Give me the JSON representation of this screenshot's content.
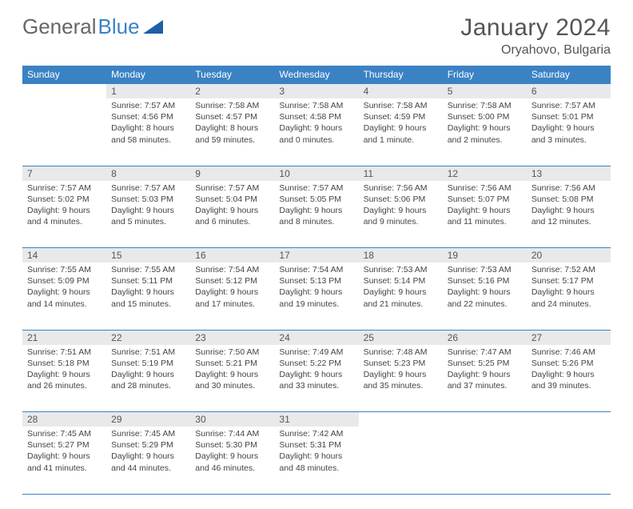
{
  "brand": {
    "general": "General",
    "blue": "Blue"
  },
  "title": "January 2024",
  "location": "Oryahovo, Bulgaria",
  "colors": {
    "header_bg": "#3b82c4",
    "header_text": "#ffffff",
    "daynum_bg": "#e8e9ea",
    "border": "#3b82c4",
    "text": "#444444",
    "page_bg": "#ffffff"
  },
  "weekdays": [
    "Sunday",
    "Monday",
    "Tuesday",
    "Wednesday",
    "Thursday",
    "Friday",
    "Saturday"
  ],
  "weeks": [
    {
      "nums": [
        "",
        "1",
        "2",
        "3",
        "4",
        "5",
        "6"
      ],
      "cells": [
        {
          "sunrise": "",
          "sunset": "",
          "daylight1": "",
          "daylight2": ""
        },
        {
          "sunrise": "Sunrise: 7:57 AM",
          "sunset": "Sunset: 4:56 PM",
          "daylight1": "Daylight: 8 hours",
          "daylight2": "and 58 minutes."
        },
        {
          "sunrise": "Sunrise: 7:58 AM",
          "sunset": "Sunset: 4:57 PM",
          "daylight1": "Daylight: 8 hours",
          "daylight2": "and 59 minutes."
        },
        {
          "sunrise": "Sunrise: 7:58 AM",
          "sunset": "Sunset: 4:58 PM",
          "daylight1": "Daylight: 9 hours",
          "daylight2": "and 0 minutes."
        },
        {
          "sunrise": "Sunrise: 7:58 AM",
          "sunset": "Sunset: 4:59 PM",
          "daylight1": "Daylight: 9 hours",
          "daylight2": "and 1 minute."
        },
        {
          "sunrise": "Sunrise: 7:58 AM",
          "sunset": "Sunset: 5:00 PM",
          "daylight1": "Daylight: 9 hours",
          "daylight2": "and 2 minutes."
        },
        {
          "sunrise": "Sunrise: 7:57 AM",
          "sunset": "Sunset: 5:01 PM",
          "daylight1": "Daylight: 9 hours",
          "daylight2": "and 3 minutes."
        }
      ]
    },
    {
      "nums": [
        "7",
        "8",
        "9",
        "10",
        "11",
        "12",
        "13"
      ],
      "cells": [
        {
          "sunrise": "Sunrise: 7:57 AM",
          "sunset": "Sunset: 5:02 PM",
          "daylight1": "Daylight: 9 hours",
          "daylight2": "and 4 minutes."
        },
        {
          "sunrise": "Sunrise: 7:57 AM",
          "sunset": "Sunset: 5:03 PM",
          "daylight1": "Daylight: 9 hours",
          "daylight2": "and 5 minutes."
        },
        {
          "sunrise": "Sunrise: 7:57 AM",
          "sunset": "Sunset: 5:04 PM",
          "daylight1": "Daylight: 9 hours",
          "daylight2": "and 6 minutes."
        },
        {
          "sunrise": "Sunrise: 7:57 AM",
          "sunset": "Sunset: 5:05 PM",
          "daylight1": "Daylight: 9 hours",
          "daylight2": "and 8 minutes."
        },
        {
          "sunrise": "Sunrise: 7:56 AM",
          "sunset": "Sunset: 5:06 PM",
          "daylight1": "Daylight: 9 hours",
          "daylight2": "and 9 minutes."
        },
        {
          "sunrise": "Sunrise: 7:56 AM",
          "sunset": "Sunset: 5:07 PM",
          "daylight1": "Daylight: 9 hours",
          "daylight2": "and 11 minutes."
        },
        {
          "sunrise": "Sunrise: 7:56 AM",
          "sunset": "Sunset: 5:08 PM",
          "daylight1": "Daylight: 9 hours",
          "daylight2": "and 12 minutes."
        }
      ]
    },
    {
      "nums": [
        "14",
        "15",
        "16",
        "17",
        "18",
        "19",
        "20"
      ],
      "cells": [
        {
          "sunrise": "Sunrise: 7:55 AM",
          "sunset": "Sunset: 5:09 PM",
          "daylight1": "Daylight: 9 hours",
          "daylight2": "and 14 minutes."
        },
        {
          "sunrise": "Sunrise: 7:55 AM",
          "sunset": "Sunset: 5:11 PM",
          "daylight1": "Daylight: 9 hours",
          "daylight2": "and 15 minutes."
        },
        {
          "sunrise": "Sunrise: 7:54 AM",
          "sunset": "Sunset: 5:12 PM",
          "daylight1": "Daylight: 9 hours",
          "daylight2": "and 17 minutes."
        },
        {
          "sunrise": "Sunrise: 7:54 AM",
          "sunset": "Sunset: 5:13 PM",
          "daylight1": "Daylight: 9 hours",
          "daylight2": "and 19 minutes."
        },
        {
          "sunrise": "Sunrise: 7:53 AM",
          "sunset": "Sunset: 5:14 PM",
          "daylight1": "Daylight: 9 hours",
          "daylight2": "and 21 minutes."
        },
        {
          "sunrise": "Sunrise: 7:53 AM",
          "sunset": "Sunset: 5:16 PM",
          "daylight1": "Daylight: 9 hours",
          "daylight2": "and 22 minutes."
        },
        {
          "sunrise": "Sunrise: 7:52 AM",
          "sunset": "Sunset: 5:17 PM",
          "daylight1": "Daylight: 9 hours",
          "daylight2": "and 24 minutes."
        }
      ]
    },
    {
      "nums": [
        "21",
        "22",
        "23",
        "24",
        "25",
        "26",
        "27"
      ],
      "cells": [
        {
          "sunrise": "Sunrise: 7:51 AM",
          "sunset": "Sunset: 5:18 PM",
          "daylight1": "Daylight: 9 hours",
          "daylight2": "and 26 minutes."
        },
        {
          "sunrise": "Sunrise: 7:51 AM",
          "sunset": "Sunset: 5:19 PM",
          "daylight1": "Daylight: 9 hours",
          "daylight2": "and 28 minutes."
        },
        {
          "sunrise": "Sunrise: 7:50 AM",
          "sunset": "Sunset: 5:21 PM",
          "daylight1": "Daylight: 9 hours",
          "daylight2": "and 30 minutes."
        },
        {
          "sunrise": "Sunrise: 7:49 AM",
          "sunset": "Sunset: 5:22 PM",
          "daylight1": "Daylight: 9 hours",
          "daylight2": "and 33 minutes."
        },
        {
          "sunrise": "Sunrise: 7:48 AM",
          "sunset": "Sunset: 5:23 PM",
          "daylight1": "Daylight: 9 hours",
          "daylight2": "and 35 minutes."
        },
        {
          "sunrise": "Sunrise: 7:47 AM",
          "sunset": "Sunset: 5:25 PM",
          "daylight1": "Daylight: 9 hours",
          "daylight2": "and 37 minutes."
        },
        {
          "sunrise": "Sunrise: 7:46 AM",
          "sunset": "Sunset: 5:26 PM",
          "daylight1": "Daylight: 9 hours",
          "daylight2": "and 39 minutes."
        }
      ]
    },
    {
      "nums": [
        "28",
        "29",
        "30",
        "31",
        "",
        "",
        ""
      ],
      "cells": [
        {
          "sunrise": "Sunrise: 7:45 AM",
          "sunset": "Sunset: 5:27 PM",
          "daylight1": "Daylight: 9 hours",
          "daylight2": "and 41 minutes."
        },
        {
          "sunrise": "Sunrise: 7:45 AM",
          "sunset": "Sunset: 5:29 PM",
          "daylight1": "Daylight: 9 hours",
          "daylight2": "and 44 minutes."
        },
        {
          "sunrise": "Sunrise: 7:44 AM",
          "sunset": "Sunset: 5:30 PM",
          "daylight1": "Daylight: 9 hours",
          "daylight2": "and 46 minutes."
        },
        {
          "sunrise": "Sunrise: 7:42 AM",
          "sunset": "Sunset: 5:31 PM",
          "daylight1": "Daylight: 9 hours",
          "daylight2": "and 48 minutes."
        },
        {
          "sunrise": "",
          "sunset": "",
          "daylight1": "",
          "daylight2": ""
        },
        {
          "sunrise": "",
          "sunset": "",
          "daylight1": "",
          "daylight2": ""
        },
        {
          "sunrise": "",
          "sunset": "",
          "daylight1": "",
          "daylight2": ""
        }
      ]
    }
  ]
}
